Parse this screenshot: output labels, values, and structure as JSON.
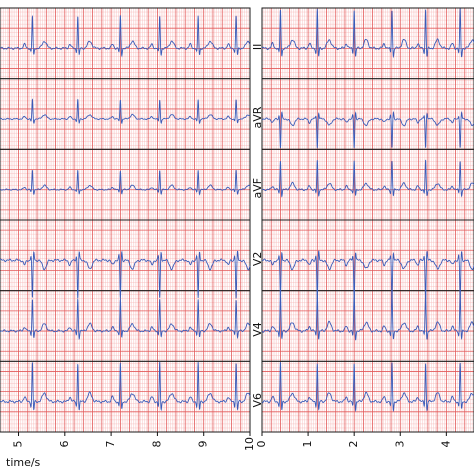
{
  "chart_data": {
    "type": "line",
    "title": "",
    "colors": {
      "grid_minor": "#f6b8b8",
      "grid_major": "#e35a5a",
      "trace": "#3a5bb8",
      "strip_divider": "#1a1a1a",
      "background": "#ffffff"
    },
    "grid": true,
    "panels": [
      {
        "name": "left",
        "xlabel": "time/s",
        "xlim": [
          4.6,
          10
        ],
        "x_ticks": [
          5,
          6,
          7,
          8,
          9,
          10
        ],
        "tick_labels": [
          "5",
          "6",
          "7",
          "8",
          "9",
          "10"
        ],
        "series": [
          {
            "lead": "",
            "label": "",
            "amplitude_mV": 0.5,
            "inverted": false,
            "beat_times_s": [
              5.3,
              6.28,
              7.2,
              8.05,
              8.88,
              9.7
            ]
          },
          {
            "lead": "",
            "label": "",
            "amplitude_mV": 0.3,
            "inverted": false,
            "beat_times_s": [
              5.3,
              6.28,
              7.2,
              8.05,
              8.88,
              9.7
            ]
          },
          {
            "lead": "",
            "label": "",
            "amplitude_mV": 0.3,
            "inverted": false,
            "beat_times_s": [
              5.3,
              6.28,
              7.2,
              8.05,
              8.88,
              9.7
            ]
          },
          {
            "lead": "",
            "label": "",
            "amplitude_mV": 0.6,
            "inverted": true,
            "beat_times_s": [
              5.3,
              6.28,
              7.2,
              8.05,
              8.88,
              9.7
            ]
          },
          {
            "lead": "",
            "label": "",
            "amplitude_mV": 0.5,
            "inverted": false,
            "beat_times_s": [
              5.3,
              6.28,
              7.2,
              8.05,
              8.88,
              9.7
            ]
          },
          {
            "lead": "",
            "label": "",
            "amplitude_mV": 0.6,
            "inverted": false,
            "beat_times_s": [
              5.3,
              6.28,
              7.2,
              8.05,
              8.88,
              9.7
            ]
          }
        ]
      },
      {
        "name": "right",
        "xlabel": "",
        "xlim": [
          0,
          4.6
        ],
        "x_ticks": [
          0,
          1,
          2,
          3,
          4
        ],
        "tick_labels": [
          "0",
          "1",
          "2",
          "3",
          "4"
        ],
        "series": [
          {
            "lead": "II",
            "label": "II",
            "amplitude_mV": 0.6,
            "inverted": false,
            "beat_times_s": [
              0.4,
              1.2,
              2.0,
              2.82,
              3.55,
              4.3
            ]
          },
          {
            "lead": "aVR",
            "label": "aVR",
            "amplitude_mV": 0.45,
            "inverted": true,
            "beat_times_s": [
              0.4,
              1.2,
              2.0,
              2.82,
              3.55,
              4.3
            ]
          },
          {
            "lead": "aVF",
            "label": "aVF",
            "amplitude_mV": 0.45,
            "inverted": false,
            "beat_times_s": [
              0.4,
              1.2,
              2.0,
              2.82,
              3.55,
              4.3
            ]
          },
          {
            "lead": "V2",
            "label": "V2",
            "amplitude_mV": 0.6,
            "inverted": true,
            "beat_times_s": [
              0.4,
              1.2,
              2.0,
              2.82,
              3.55,
              4.3
            ]
          },
          {
            "lead": "V4",
            "label": "V4",
            "amplitude_mV": 0.6,
            "inverted": false,
            "beat_times_s": [
              0.4,
              1.2,
              2.0,
              2.82,
              3.55,
              4.3
            ]
          },
          {
            "lead": "V6",
            "label": "V6",
            "amplitude_mV": 0.6,
            "inverted": false,
            "beat_times_s": [
              0.4,
              1.2,
              2.0,
              2.82,
              3.55,
              4.3
            ]
          }
        ]
      }
    ]
  }
}
